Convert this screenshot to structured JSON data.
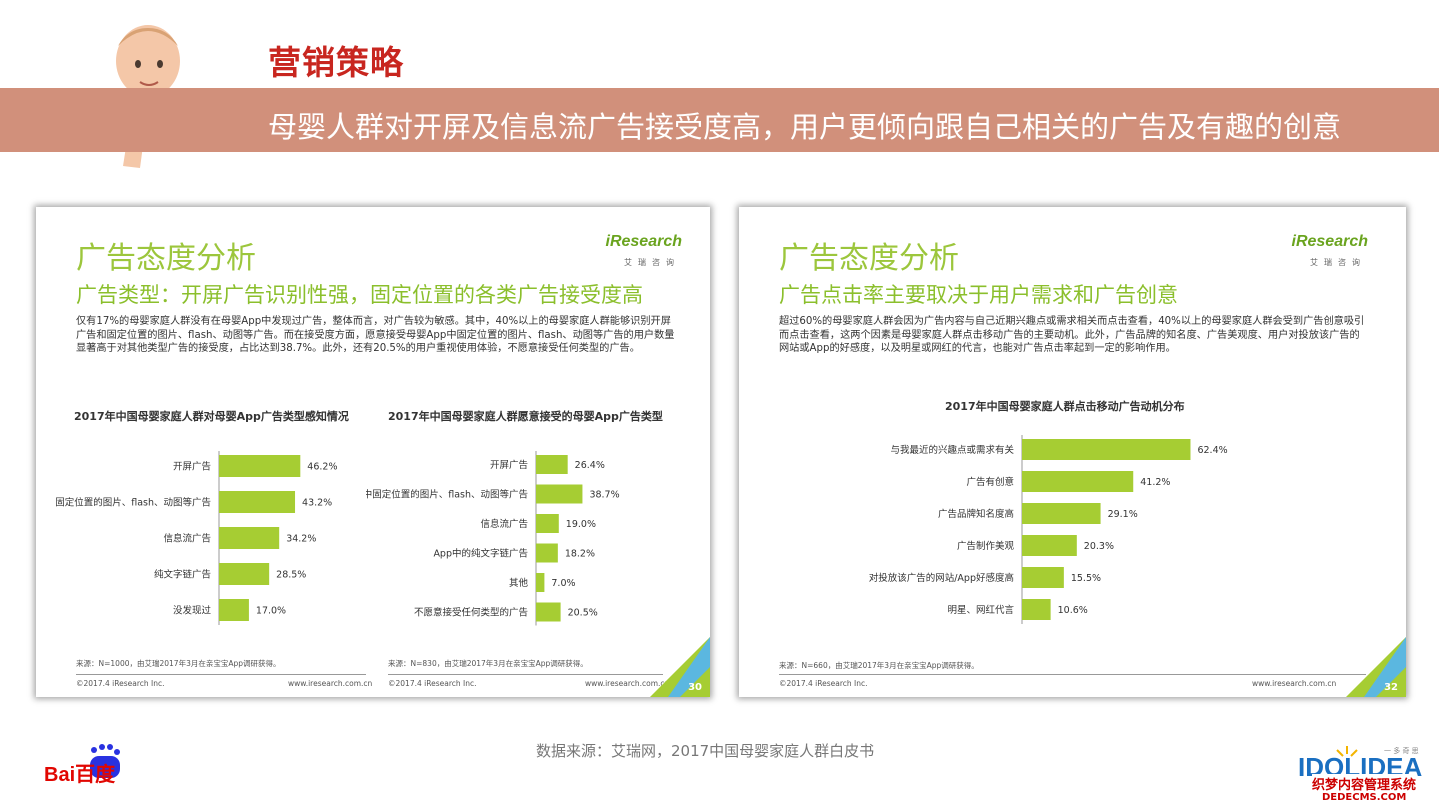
{
  "header": {
    "title": "营销策略",
    "banner_text": "母婴人群对开屏及信息流广告接受度高，用户更倾向跟自己相关的广告及有趣的创意"
  },
  "card_left": {
    "title": "广告态度分析",
    "subtitle": "广告类型：开屏广告识别性强，固定位置的各类广告接受度高",
    "paragraph": "仅有17%的母婴家庭人群没有在母婴App中发现过广告，整体而言，对广告较为敏感。其中，40%以上的母婴家庭人群能够识别开屏广告和固定位置的图片、flash、动图等广告。而在接受度方面，愿意接受母婴App中固定位置的图片、flash、动图等广告的用户数量显著高于对其他类型广告的接受度，占比达到38.7%。此外，还有20.5%的用户重视使用体验，不愿意接受任何类型的广告。",
    "logo_word": "iResearch",
    "logo_cn": "艾瑞咨询",
    "source_a": "来源：N=1000，由艾瑞2017年3月在亲宝宝App调研获得。",
    "source_b": "来源：N=830，由艾瑞2017年3月在亲宝宝App调研获得。",
    "copyright_a": "©2017.4 iResearch Inc.",
    "url_a": "www.iresearch.com.cn",
    "copyright_b": "©2017.4 iResearch Inc.",
    "url_b": "www.iresearch.com.cn",
    "page": "30"
  },
  "card_right": {
    "title": "广告态度分析",
    "subtitle": "广告点击率主要取决于用户需求和广告创意",
    "paragraph": "超过60%的母婴家庭人群会因为广告内容与自己近期兴趣点或需求相关而点击查看，40%以上的母婴家庭人群会受到广告创意吸引而点击查看，这两个因素是母婴家庭人群点击移动广告的主要动机。此外，广告品牌的知名度、广告美观度、用户对投放该广告的网站或App的好感度，以及明星或网红的代言，也能对广告点击率起到一定的影响作用。",
    "logo_word": "iResearch",
    "logo_cn": "艾瑞咨询",
    "source": "来源：N=660，由艾瑞2017年3月在亲宝宝App调研获得。",
    "copyright": "©2017.4 iResearch Inc.",
    "url": "www.iresearch.com.cn",
    "page": "32"
  },
  "footer": {
    "source_note": "数据来源：艾瑞网，2017中国母婴家庭人群白皮书",
    "baidu_text": "Bai百度",
    "idolidea_text": "IDOLIDEA",
    "idolidea_tag": "一 多 奇 思",
    "watermark": "织梦内容管理系统",
    "watermark_url": "DEDECMS.COM"
  },
  "colors": {
    "bar": "#a6cd33",
    "accent_red": "#c8261f",
    "banner": "#d1907b",
    "title_green": "#9cc63c"
  },
  "chart_data": [
    {
      "type": "bar",
      "orientation": "horizontal",
      "title": "2017年中国母婴家庭人群对母婴App广告类型感知情况",
      "categories": [
        "开屏广告",
        "固定位置的图片、flash、动图等广告",
        "信息流广告",
        "纯文字链广告",
        "没发现过"
      ],
      "values": [
        46.2,
        43.2,
        34.2,
        28.5,
        17.0
      ],
      "labels": [
        "46.2%",
        "43.2%",
        "34.2%",
        "28.5%",
        "17.0%"
      ],
      "xlim": [
        0,
        100
      ]
    },
    {
      "type": "bar",
      "orientation": "horizontal",
      "title": "2017年中国母婴家庭人群愿意接受的母婴App广告类型",
      "categories": [
        "开屏广告",
        "App中固定位置的图片、flash、动图等广告",
        "信息流广告",
        "App中的纯文字链广告",
        "其他",
        "不愿意接受任何类型的广告"
      ],
      "values": [
        26.4,
        38.7,
        19.0,
        18.2,
        7.0,
        20.5
      ],
      "labels": [
        "26.4%",
        "38.7%",
        "19.0%",
        "18.2%",
        "7.0%",
        "20.5%"
      ],
      "xlim": [
        0,
        100
      ]
    },
    {
      "type": "bar",
      "orientation": "horizontal",
      "title": "2017年中国母婴家庭人群点击移动广告动机分布",
      "categories": [
        "与我最近的兴趣点或需求有关",
        "广告有创意",
        "广告品牌知名度高",
        "广告制作美观",
        "对投放该广告的网站/App好感度高",
        "明星、网红代言"
      ],
      "values": [
        62.4,
        41.2,
        29.1,
        20.3,
        15.5,
        10.6
      ],
      "labels": [
        "62.4%",
        "41.2%",
        "29.1%",
        "20.3%",
        "15.5%",
        "10.6%"
      ],
      "xlim": [
        0,
        100
      ]
    }
  ]
}
